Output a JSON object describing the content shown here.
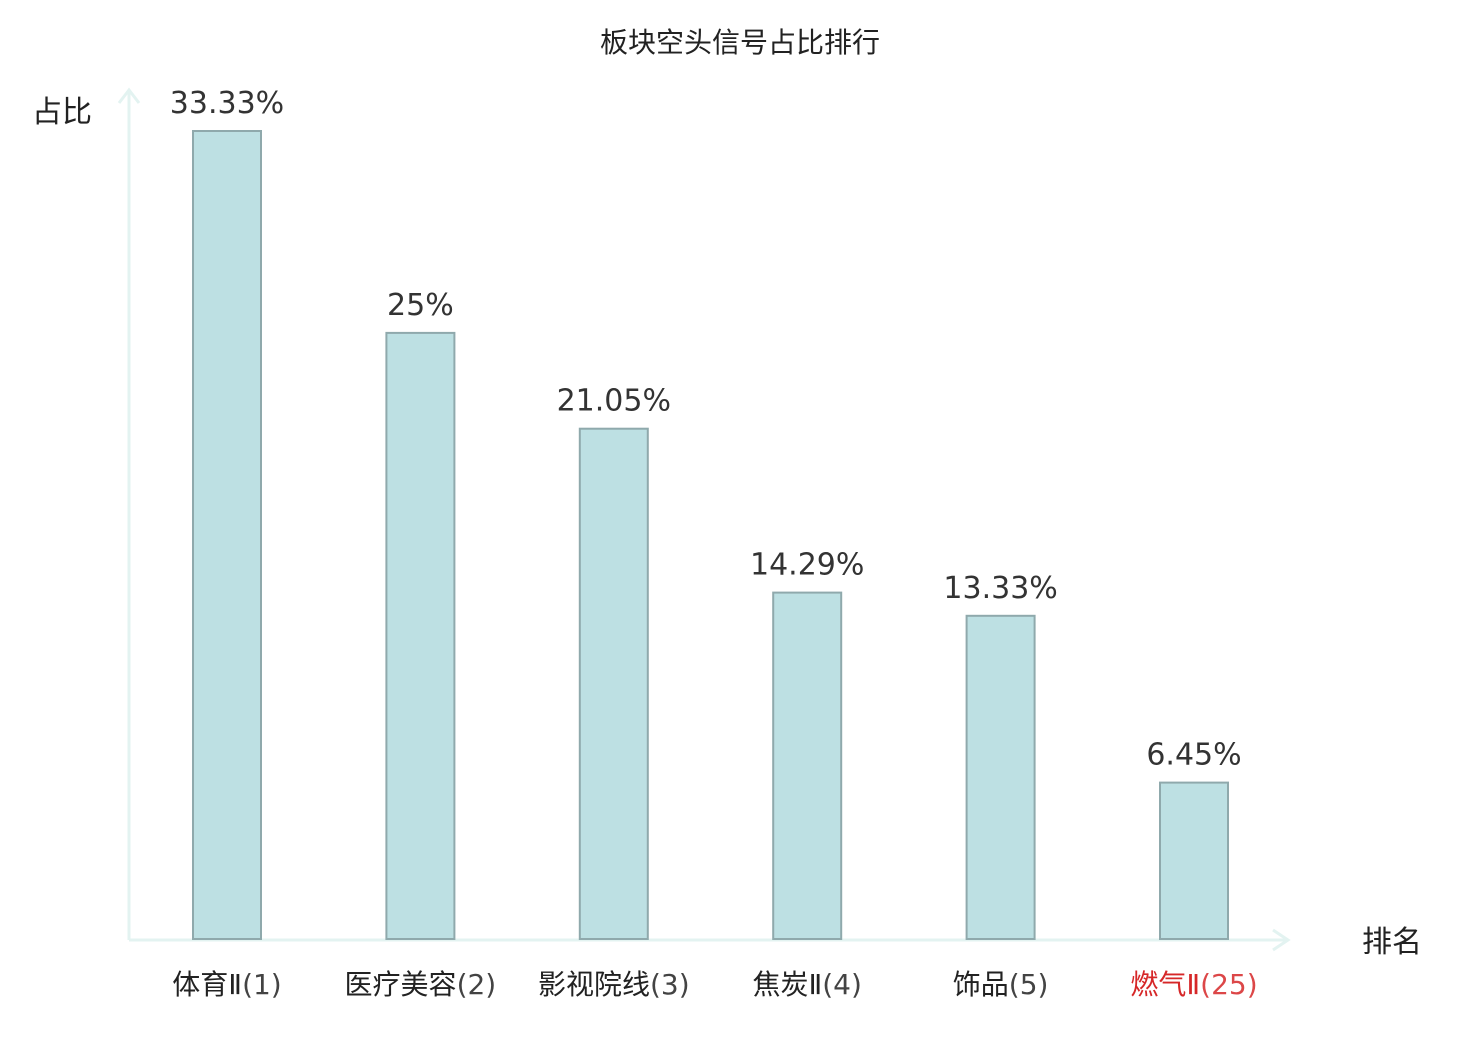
{
  "chart_data": {
    "type": "bar",
    "title": "板块空头信号占比排行",
    "xlabel": "排名",
    "ylabel": "占比",
    "ylim": [
      0,
      33.33
    ],
    "grid": false,
    "legend": "none",
    "categories": [
      {
        "name": "体育Ⅱ",
        "rank": "(1)",
        "highlight": false
      },
      {
        "name": "医疗美容",
        "rank": "(2)",
        "highlight": false
      },
      {
        "name": "影视院线",
        "rank": "(3)",
        "highlight": false
      },
      {
        "name": "焦炭Ⅱ",
        "rank": "(4)",
        "highlight": false
      },
      {
        "name": "饰品",
        "rank": "(5)",
        "highlight": false
      },
      {
        "name": "燃气Ⅱ",
        "rank": "(25)",
        "highlight": true
      }
    ],
    "values": [
      33.33,
      25,
      21.05,
      14.29,
      13.33,
      6.45
    ],
    "value_labels": [
      "33.33%",
      "25%",
      "21.05%",
      "14.29%",
      "13.33%",
      "6.45%"
    ],
    "colors": {
      "bar_fill": "#bde0e3",
      "bar_stroke": "#8fa9ac",
      "axis": "#e3f3f1",
      "label_default": "#222222",
      "label_highlight": "#d62728"
    }
  }
}
